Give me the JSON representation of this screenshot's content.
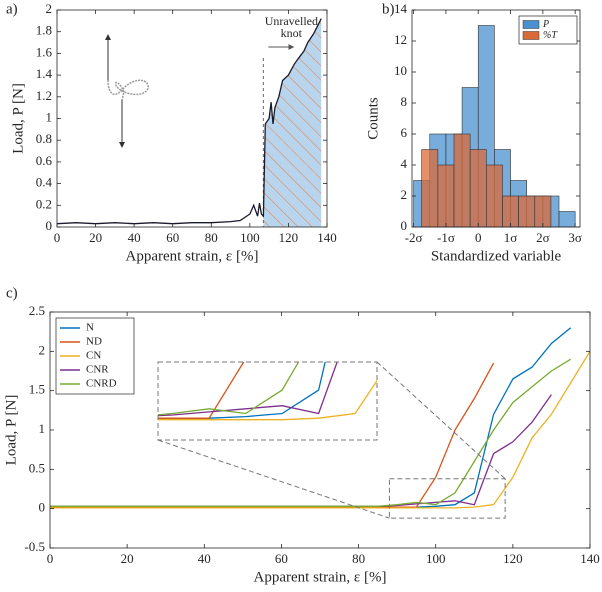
{
  "chart_data": [
    {
      "type": "line",
      "label": "a)",
      "xlabel": "Apparent strain, ε [%]",
      "ylabel": "Load, P [N]",
      "x": [
        0,
        10,
        20,
        30,
        40,
        50,
        60,
        70,
        80,
        90,
        95,
        100,
        102,
        104,
        105,
        106,
        107,
        108,
        110,
        111,
        112,
        113,
        115,
        117,
        120,
        123,
        125,
        128,
        130,
        133,
        135,
        137
      ],
      "values": [
        0.03,
        0.04,
        0.03,
        0.04,
        0.03,
        0.04,
        0.03,
        0.04,
        0.04,
        0.05,
        0.06,
        0.12,
        0.2,
        0.1,
        0.22,
        0.12,
        0.1,
        0.95,
        1.0,
        1.15,
        0.95,
        1.1,
        1.2,
        1.35,
        1.4,
        1.5,
        1.55,
        1.62,
        1.7,
        1.78,
        1.85,
        1.92
      ],
      "color": "#1a1a2e",
      "annotation": {
        "text": [
          "Unravelled",
          "knot"
        ],
        "x": 107
      },
      "xlim": [
        0,
        140
      ],
      "xticks": [
        0,
        20,
        40,
        60,
        80,
        100,
        120,
        140
      ],
      "ylim": [
        0,
        2
      ],
      "yticks": [
        0,
        0.2,
        0.4,
        0.6,
        0.8,
        1,
        1.2,
        1.4,
        1.6,
        1.8,
        2
      ]
    },
    {
      "type": "histogram",
      "label": "b)",
      "xlabel": "Standardized variable",
      "ylabel": "Counts",
      "series": [
        {
          "name": "P",
          "color": "#4a90cf",
          "bins": [
            -2,
            -1.5,
            -1,
            -0.5,
            0,
            0.5,
            1,
            1.5,
            2,
            2.5,
            3
          ],
          "values": [
            3,
            6,
            6,
            9,
            13,
            5,
            3,
            2,
            2,
            1
          ]
        },
        {
          "name": "%T",
          "color": "#d96b3a",
          "bins": [
            -1.75,
            -1.25,
            -0.75,
            -0.25,
            0.25,
            0.75,
            1.25,
            1.75,
            2.25
          ],
          "values": [
            5,
            4,
            6,
            5,
            4,
            2,
            2,
            2
          ]
        }
      ],
      "legend": "upper right",
      "xlim": [
        -2.05,
        3.15
      ],
      "xticks": [
        {
          "value": -2,
          "label": "-2σ"
        },
        {
          "value": -1,
          "label": "-1σ"
        },
        {
          "value": 0,
          "label": "0"
        },
        {
          "value": 1,
          "label": "1σ"
        },
        {
          "value": 2,
          "label": "2σ"
        },
        {
          "value": 3,
          "label": "3σ"
        }
      ],
      "ylim": [
        0,
        14
      ],
      "yticks": [
        0,
        2,
        4,
        6,
        8,
        10,
        12,
        14
      ]
    },
    {
      "type": "line",
      "label": "c)",
      "xlabel": "Apparent strain, ε [%]",
      "ylabel": "Load, P [N]",
      "x": [
        0,
        5,
        10,
        15,
        20,
        25,
        30,
        35,
        40,
        45,
        50,
        55,
        60,
        65,
        70,
        75,
        80,
        85,
        90,
        95,
        100,
        105,
        110,
        115,
        120,
        125,
        130,
        135,
        140
      ],
      "series": [
        {
          "name": "N",
          "color": "#0072bd",
          "values": [
            0.02,
            0.02,
            0.02,
            0.02,
            0.02,
            0.02,
            0.02,
            0.02,
            0.02,
            0.02,
            0.02,
            0.02,
            0.02,
            0.02,
            0.02,
            0.02,
            0.02,
            0.02,
            0.02,
            0.02,
            0.03,
            0.05,
            0.2,
            1.2,
            1.65,
            1.8,
            2.1,
            2.3,
            null
          ]
        },
        {
          "name": "ND",
          "color": "#d95319",
          "values": [
            0.02,
            0.02,
            0.02,
            0.02,
            0.02,
            0.02,
            0.02,
            0.02,
            0.02,
            0.02,
            0.02,
            0.02,
            0.02,
            0.02,
            0.02,
            0.02,
            0.02,
            0.02,
            0.02,
            0.02,
            0.4,
            1.0,
            1.4,
            1.85,
            null,
            null,
            null,
            null,
            null
          ]
        },
        {
          "name": "CN",
          "color": "#edb120",
          "values": [
            0.01,
            0.01,
            0.01,
            0.01,
            0.01,
            0.01,
            0.01,
            0.01,
            0.01,
            0.01,
            0.01,
            0.01,
            0.01,
            0.01,
            0.01,
            0.01,
            0.01,
            0.01,
            0.01,
            0.01,
            0.01,
            0.01,
            0.02,
            0.05,
            0.4,
            0.9,
            1.2,
            1.6,
            2.0
          ]
        },
        {
          "name": "CNR",
          "color": "#7e2f8e",
          "values": [
            0.03,
            0.03,
            0.03,
            0.03,
            0.03,
            0.03,
            0.03,
            0.03,
            0.03,
            0.03,
            0.03,
            0.03,
            0.03,
            0.03,
            0.03,
            0.03,
            0.03,
            0.03,
            0.04,
            0.06,
            0.08,
            0.1,
            0.05,
            0.7,
            0.85,
            1.1,
            1.45,
            null,
            null
          ]
        },
        {
          "name": "CNRD",
          "color": "#77ac30",
          "values": [
            0.03,
            0.03,
            0.03,
            0.03,
            0.03,
            0.03,
            0.03,
            0.03,
            0.03,
            0.03,
            0.03,
            0.03,
            0.03,
            0.03,
            0.03,
            0.03,
            0.03,
            0.03,
            0.05,
            0.08,
            0.05,
            0.2,
            0.6,
            1.0,
            1.35,
            1.55,
            1.75,
            1.9,
            null
          ]
        }
      ],
      "legend": "upper left",
      "inset": {
        "xlim": [
          88,
          118
        ],
        "ylim": [
          -0.12,
          0.38
        ]
      },
      "xlim": [
        0,
        140
      ],
      "xticks": [
        0,
        20,
        40,
        60,
        80,
        100,
        120,
        140
      ],
      "ylim": [
        -0.5,
        2.5
      ],
      "yticks": [
        -0.5,
        0,
        0.5,
        1,
        1.5,
        2,
        2.5
      ]
    }
  ]
}
